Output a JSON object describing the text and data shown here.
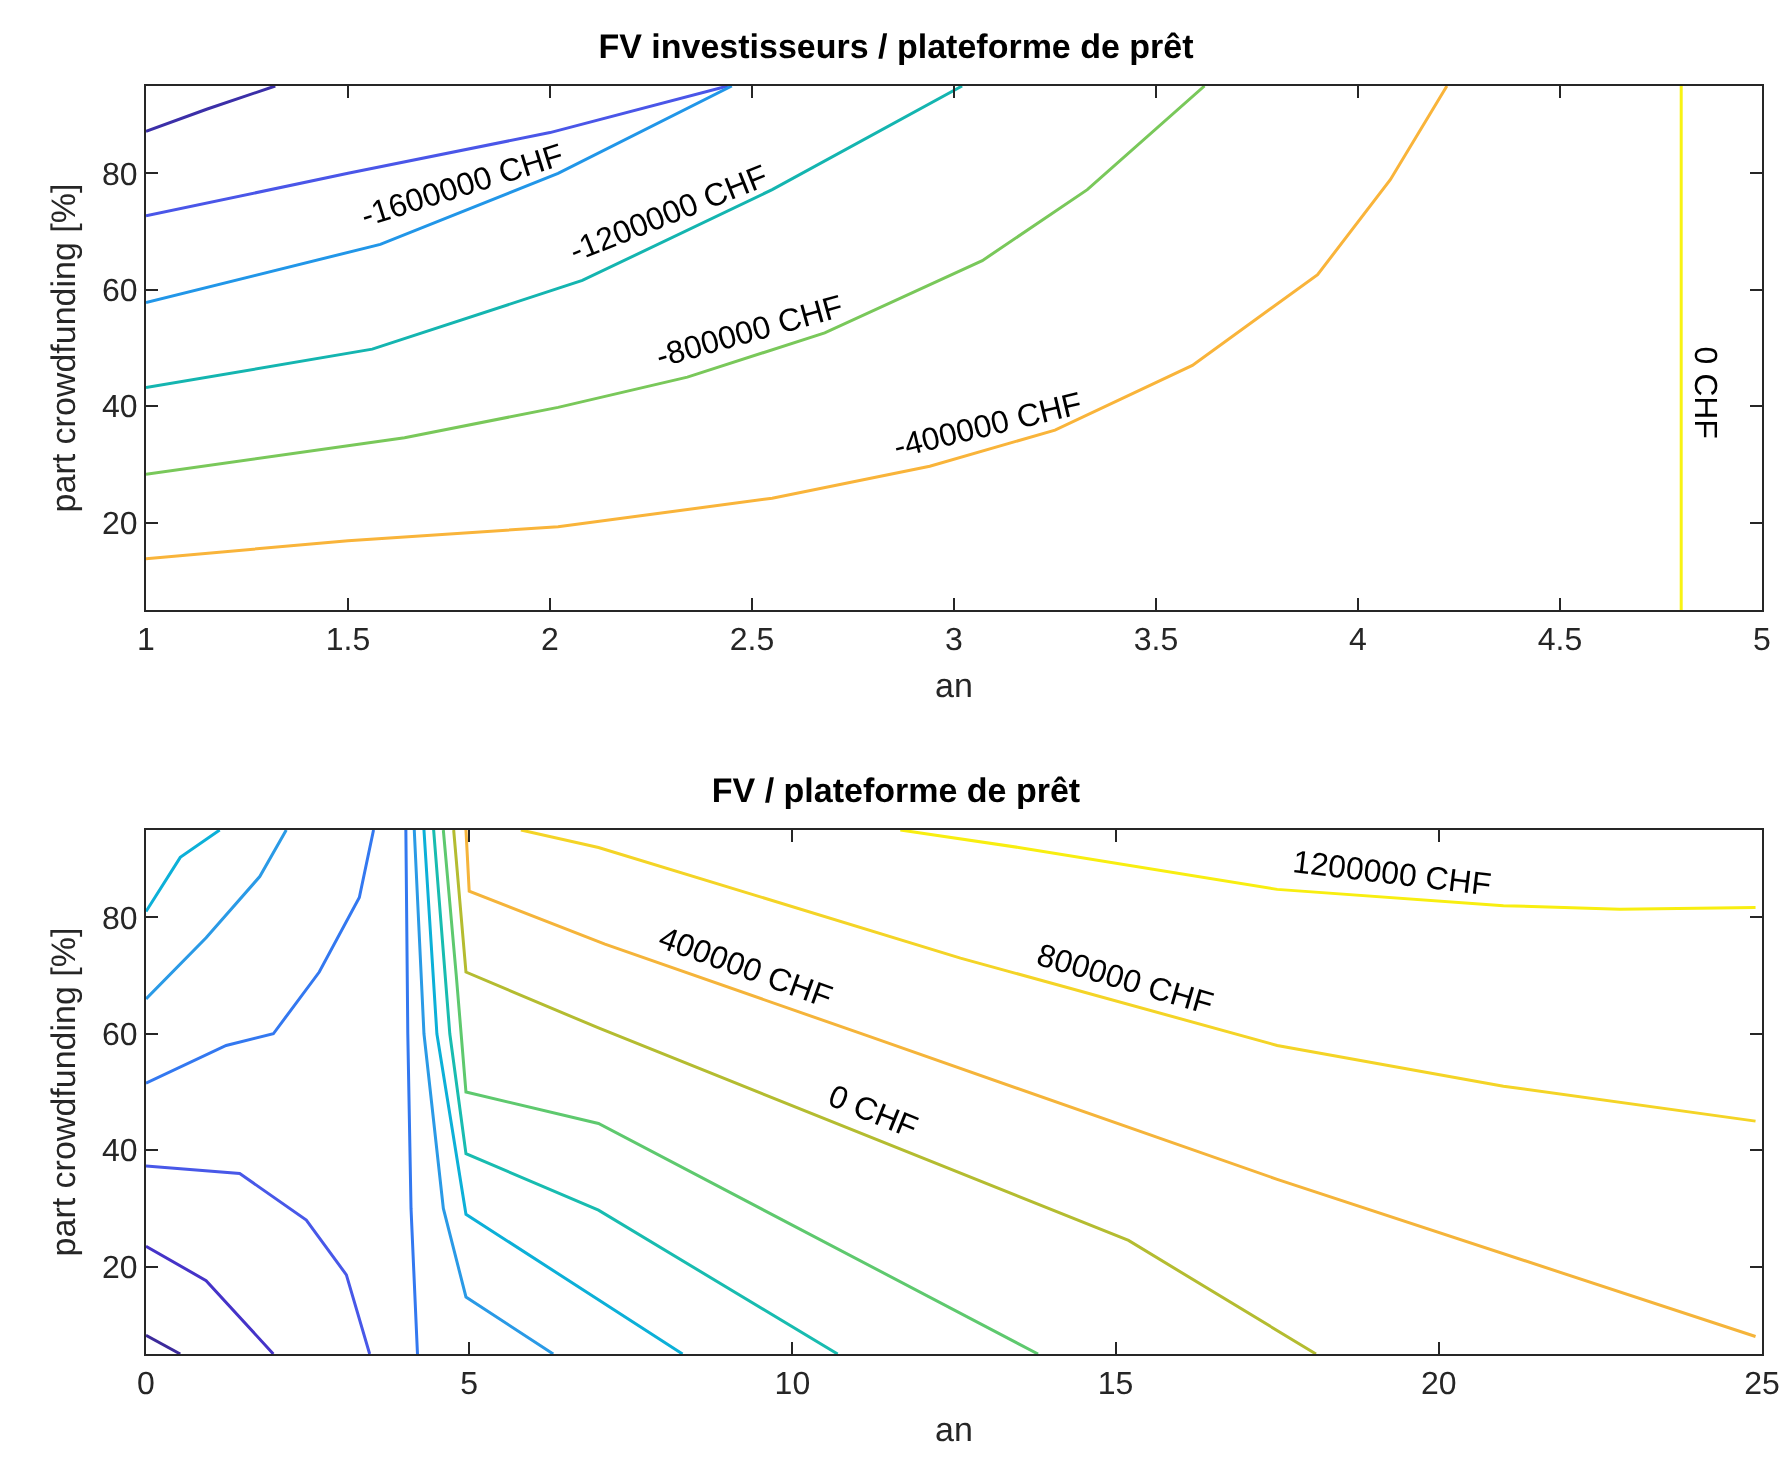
{
  "chart_data": [
    {
      "type": "line",
      "title": "FV investisseurs / plateforme de prêt",
      "xlabel": "an",
      "ylabel": "part crowdfunding [%]",
      "xlim": [
        1,
        5
      ],
      "ylim": [
        5,
        95
      ],
      "xticks": [
        1,
        1.5,
        2,
        2.5,
        3,
        3.5,
        4,
        4.5,
        5
      ],
      "yticks": [
        20,
        40,
        60,
        80
      ],
      "grid": false,
      "legend": false,
      "series": [
        {
          "color": "#3b2fa8",
          "x": [
            1,
            1.15,
            1.32
          ],
          "values": [
            87.2,
            91,
            95
          ]
        },
        {
          "color": "#4a56e8",
          "x": [
            1,
            1.5,
            2,
            2.44
          ],
          "values": [
            72.7,
            80,
            87,
            95
          ]
        },
        {
          "name": "-1600000 CHF",
          "color": "#2196e8",
          "x": [
            1,
            1.58,
            2.02,
            2.45
          ],
          "values": [
            57.8,
            67.8,
            80,
            95
          ]
        },
        {
          "name": "-1200000 CHF",
          "color": "#14b5b0",
          "x": [
            1,
            1.56,
            2.08,
            2.55,
            3.02
          ],
          "values": [
            43.2,
            49.8,
            61.6,
            77.2,
            95
          ]
        },
        {
          "name": "-800000 CHF",
          "color": "#79c85a",
          "x": [
            1,
            1.64,
            2.02,
            2.34,
            2.68,
            3.07,
            3.33,
            3.62
          ],
          "values": [
            28.3,
            34.6,
            39.8,
            45,
            52.6,
            65,
            77.2,
            95
          ]
        },
        {
          "name": "-400000 CHF",
          "color": "#f9b43a",
          "x": [
            1,
            1.5,
            2.02,
            2.55,
            2.94,
            3.25,
            3.59,
            3.9,
            4.08,
            4.22
          ],
          "values": [
            13.8,
            16.9,
            19.3,
            24.2,
            29.7,
            35.9,
            47,
            62.6,
            78.9,
            95
          ]
        },
        {
          "name": "0 CHF",
          "color": "#f8f314",
          "x": [
            4.8,
            4.8,
            4.8
          ],
          "values": [
            95,
            80,
            5
          ]
        }
      ]
    },
    {
      "type": "line",
      "title": "FV / plateforme de prêt",
      "xlabel": "an",
      "ylabel": "part crowdfunding [%]",
      "xlim": [
        0,
        25
      ],
      "ylim": [
        5,
        95
      ],
      "xticks": [
        0,
        5,
        10,
        15,
        20,
        25
      ],
      "yticks": [
        20,
        40,
        60,
        80
      ],
      "grid": false,
      "legend": false,
      "series": [
        {
          "color": "#3c2a9b",
          "x": [
            0,
            0.53
          ],
          "values": [
            8.2,
            5
          ]
        },
        {
          "color": "#4533c8",
          "x": [
            0,
            0.93,
            1.97
          ],
          "values": [
            23.5,
            17.6,
            5
          ]
        },
        {
          "color": "#4858e8",
          "x": [
            0,
            1.45,
            2.48,
            3.1,
            3.46
          ],
          "values": [
            37.3,
            36,
            28,
            18.6,
            5
          ]
        },
        {
          "color": "#3378f0",
          "x": [
            0,
            1.24,
            1.97,
            2.68,
            3.3,
            3.52
          ],
          "values": [
            51.5,
            58,
            60,
            70.6,
            83.4,
            95
          ]
        },
        {
          "color": "#2a9ae6",
          "x": [
            0,
            0.93,
            1.76,
            2.17
          ],
          "values": [
            66,
            76.5,
            87,
            95
          ]
        },
        {
          "color": "#0cb0d8",
          "x": [
            0,
            0.53,
            1.14
          ],
          "values": [
            81,
            90.3,
            95
          ]
        },
        {
          "color": "#3378f0",
          "x": [
            4.02,
            4.05,
            4.1,
            4.2
          ],
          "values": [
            95,
            60,
            30,
            5
          ]
        },
        {
          "color": "#2a9ae6",
          "x": [
            4.15,
            4.3,
            4.6,
            4.95,
            6.3
          ],
          "values": [
            95,
            60,
            30,
            14.8,
            5
          ]
        },
        {
          "color": "#0cb0d8",
          "x": [
            4.3,
            4.5,
            4.95,
            8.3
          ],
          "values": [
            95,
            60,
            29,
            5
          ]
        },
        {
          "color": "#18bcb0",
          "x": [
            4.45,
            4.7,
            4.95,
            7,
            10.7
          ],
          "values": [
            95,
            60,
            39.4,
            29.7,
            5
          ]
        },
        {
          "color": "#5ec96e",
          "x": [
            4.6,
            4.8,
            4.95,
            7,
            13.8
          ],
          "values": [
            95,
            70,
            50,
            44.6,
            5
          ]
        },
        {
          "name": "0 CHF",
          "color": "#b4bc30",
          "x": [
            4.76,
            4.95,
            7,
            15.2,
            18.1
          ],
          "values": [
            95,
            70.6,
            61,
            24.5,
            5
          ]
        },
        {
          "name": "400000 CHF",
          "color": "#f5b43a",
          "x": [
            4.95,
            5,
            7.1,
            11.2,
            17.5,
            24.9
          ],
          "values": [
            95,
            84.5,
            75.4,
            59.5,
            35,
            8
          ]
        },
        {
          "name": "800000 CHF",
          "color": "#f4d426",
          "x": [
            5.8,
            7,
            12.6,
            17.5,
            21,
            24.9
          ],
          "values": [
            95,
            92,
            73,
            58,
            51,
            45
          ]
        },
        {
          "name": "1200000 CHF",
          "color": "#f8ee10",
          "x": [
            11.67,
            13.5,
            17.5,
            21,
            22.8,
            24.9
          ],
          "values": [
            95,
            92,
            84.8,
            82,
            81.4,
            81.7
          ]
        }
      ]
    }
  ]
}
